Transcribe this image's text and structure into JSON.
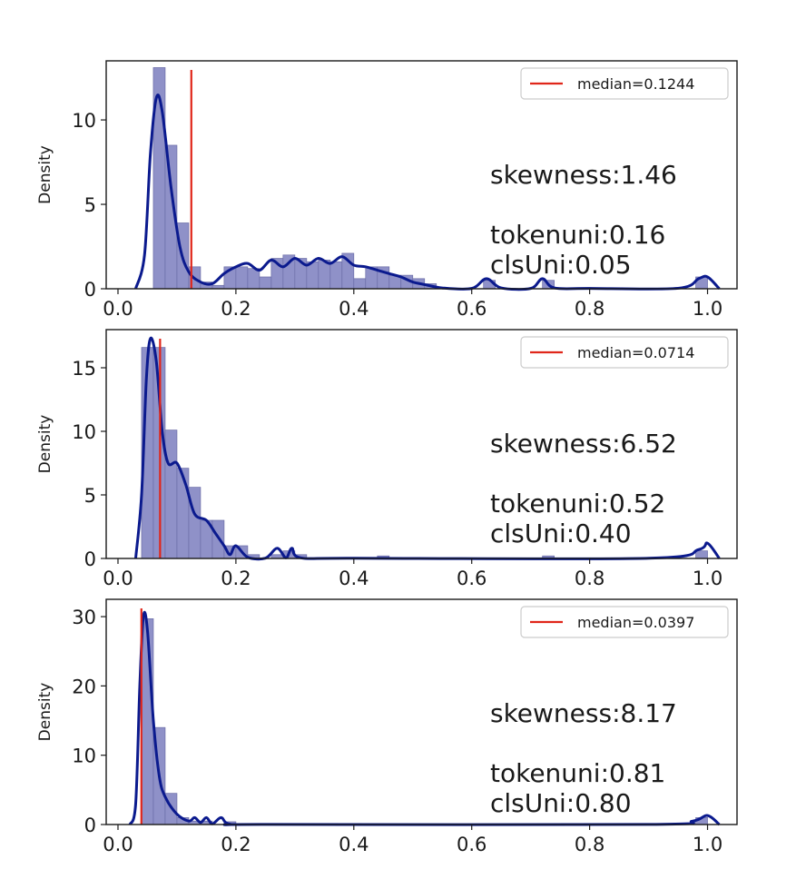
{
  "chart_data": [
    {
      "type": "bar",
      "ylabel": "Density",
      "xlim": [
        -0.02,
        1.05
      ],
      "ylim": [
        0,
        13.5
      ],
      "xticks": [
        "0.0",
        "0.2",
        "0.4",
        "0.6",
        "0.8",
        "1.0"
      ],
      "xtick_values": [
        0,
        0.2,
        0.4,
        0.6,
        0.8,
        1.0
      ],
      "yticks": [
        "0",
        "5",
        "10"
      ],
      "ytick_values": [
        0,
        5,
        10
      ],
      "bin_width": 0.02,
      "bins": [
        [
          0.06,
          13.1
        ],
        [
          0.08,
          8.5
        ],
        [
          0.1,
          3.9
        ],
        [
          0.12,
          1.3
        ],
        [
          0.14,
          0.4
        ],
        [
          0.16,
          0.2
        ],
        [
          0.18,
          1.3
        ],
        [
          0.2,
          1.3
        ],
        [
          0.22,
          1.2
        ],
        [
          0.24,
          0.7
        ],
        [
          0.26,
          1.8
        ],
        [
          0.28,
          2.0
        ],
        [
          0.3,
          1.8
        ],
        [
          0.32,
          1.6
        ],
        [
          0.34,
          1.7
        ],
        [
          0.36,
          1.6
        ],
        [
          0.38,
          2.1
        ],
        [
          0.4,
          0.6
        ],
        [
          0.42,
          1.3
        ],
        [
          0.44,
          1.3
        ],
        [
          0.46,
          0.8
        ],
        [
          0.48,
          0.8
        ],
        [
          0.5,
          0.6
        ],
        [
          0.52,
          0.3
        ],
        [
          0.62,
          0.5
        ],
        [
          0.72,
          0.5
        ],
        [
          0.98,
          0.7
        ]
      ],
      "kde": [
        [
          0.03,
          0
        ],
        [
          0.045,
          2
        ],
        [
          0.055,
          8
        ],
        [
          0.065,
          11.3
        ],
        [
          0.075,
          10.5
        ],
        [
          0.09,
          6
        ],
        [
          0.105,
          2.5
        ],
        [
          0.12,
          1.0
        ],
        [
          0.14,
          0.4
        ],
        [
          0.16,
          0.3
        ],
        [
          0.18,
          0.9
        ],
        [
          0.2,
          1.3
        ],
        [
          0.22,
          1.5
        ],
        [
          0.24,
          1.1
        ],
        [
          0.26,
          1.7
        ],
        [
          0.28,
          1.3
        ],
        [
          0.3,
          1.8
        ],
        [
          0.32,
          1.4
        ],
        [
          0.34,
          1.8
        ],
        [
          0.36,
          1.5
        ],
        [
          0.38,
          1.9
        ],
        [
          0.4,
          1.4
        ],
        [
          0.42,
          1.3
        ],
        [
          0.44,
          1.1
        ],
        [
          0.46,
          0.9
        ],
        [
          0.48,
          0.7
        ],
        [
          0.5,
          0.4
        ],
        [
          0.52,
          0.25
        ],
        [
          0.55,
          0.05
        ],
        [
          0.6,
          0.02
        ],
        [
          0.625,
          0.6
        ],
        [
          0.65,
          0.05
        ],
        [
          0.7,
          0.02
        ],
        [
          0.72,
          0.6
        ],
        [
          0.74,
          0.05
        ],
        [
          0.8,
          0.02
        ],
        [
          0.95,
          0.03
        ],
        [
          0.985,
          0.6
        ],
        [
          1.0,
          0.7
        ],
        [
          1.02,
          0
        ]
      ],
      "median": 0.1244,
      "legend": "median=0.1244",
      "legend_position": "top-right",
      "annotations": [
        "skewness:1.46",
        "tokenuni:0.16",
        "clsUni:0.05"
      ]
    },
    {
      "type": "bar",
      "ylabel": "Density",
      "xlim": [
        -0.02,
        1.05
      ],
      "ylim": [
        0,
        18
      ],
      "xticks": [
        "0.0",
        "0.2",
        "0.4",
        "0.6",
        "0.8",
        "1.0"
      ],
      "xtick_values": [
        0,
        0.2,
        0.4,
        0.6,
        0.8,
        1.0
      ],
      "yticks": [
        "0",
        "5",
        "10",
        "15"
      ],
      "ytick_values": [
        0,
        5,
        10,
        15
      ],
      "bin_width": 0.02,
      "bins": [
        [
          0.04,
          16.6
        ],
        [
          0.06,
          16.6
        ],
        [
          0.08,
          10.1
        ],
        [
          0.1,
          7.1
        ],
        [
          0.12,
          5.6
        ],
        [
          0.14,
          3.0
        ],
        [
          0.16,
          3.0
        ],
        [
          0.18,
          1.0
        ],
        [
          0.2,
          1.0
        ],
        [
          0.22,
          0.3
        ],
        [
          0.26,
          0.3
        ],
        [
          0.28,
          0.6
        ],
        [
          0.3,
          0.3
        ],
        [
          0.44,
          0.2
        ],
        [
          0.72,
          0.2
        ],
        [
          0.98,
          0.6
        ]
      ],
      "kde": [
        [
          0.03,
          0
        ],
        [
          0.04,
          5
        ],
        [
          0.048,
          14
        ],
        [
          0.055,
          17.3
        ],
        [
          0.065,
          15.5
        ],
        [
          0.075,
          10
        ],
        [
          0.085,
          7.5
        ],
        [
          0.1,
          7.5
        ],
        [
          0.115,
          5.8
        ],
        [
          0.13,
          3.5
        ],
        [
          0.15,
          3.0
        ],
        [
          0.165,
          2.0
        ],
        [
          0.18,
          1.0
        ],
        [
          0.19,
          0.3
        ],
        [
          0.2,
          1.0
        ],
        [
          0.22,
          0.1
        ],
        [
          0.25,
          0.02
        ],
        [
          0.27,
          0.8
        ],
        [
          0.285,
          0.05
        ],
        [
          0.295,
          0.8
        ],
        [
          0.31,
          0.05
        ],
        [
          0.4,
          0.02
        ],
        [
          0.9,
          0.02
        ],
        [
          0.985,
          0.7
        ],
        [
          1.0,
          1.2
        ],
        [
          1.02,
          0
        ]
      ],
      "median": 0.0714,
      "legend": "median=0.0714",
      "legend_position": "top-right",
      "annotations": [
        "skewness:6.52",
        "tokenuni:0.52",
        "clsUni:0.40"
      ]
    },
    {
      "type": "bar",
      "ylabel": "Density",
      "xlim": [
        -0.02,
        1.05
      ],
      "ylim": [
        0,
        32.5
      ],
      "xticks": [
        "0.0",
        "0.2",
        "0.4",
        "0.6",
        "0.8",
        "1.0"
      ],
      "xtick_values": [
        0,
        0.2,
        0.4,
        0.6,
        0.8,
        1.0
      ],
      "yticks": [
        "0",
        "10",
        "20",
        "30"
      ],
      "ytick_values": [
        0,
        10,
        20,
        30
      ],
      "bin_width": 0.02,
      "bins": [
        [
          0.04,
          29.7
        ],
        [
          0.06,
          14.0
        ],
        [
          0.08,
          4.5
        ],
        [
          0.1,
          1.0
        ],
        [
          0.12,
          0.5
        ],
        [
          0.14,
          0.5
        ],
        [
          0.18,
          0.4
        ],
        [
          0.98,
          1.0
        ]
      ],
      "kde": [
        [
          0.02,
          0
        ],
        [
          0.03,
          3
        ],
        [
          0.037,
          20
        ],
        [
          0.043,
          30
        ],
        [
          0.05,
          28
        ],
        [
          0.06,
          15
        ],
        [
          0.07,
          7
        ],
        [
          0.08,
          4
        ],
        [
          0.1,
          1.5
        ],
        [
          0.12,
          0.5
        ],
        [
          0.13,
          1.0
        ],
        [
          0.14,
          0.3
        ],
        [
          0.15,
          1.0
        ],
        [
          0.16,
          0.1
        ],
        [
          0.175,
          1.0
        ],
        [
          0.19,
          0.05
        ],
        [
          0.25,
          0.02
        ],
        [
          0.9,
          0.02
        ],
        [
          0.975,
          0.5
        ],
        [
          1.0,
          1.3
        ],
        [
          1.02,
          0
        ]
      ],
      "median": 0.0397,
      "legend": "median=0.0397",
      "legend_position": "top-right",
      "annotations": [
        "skewness:8.17",
        "tokenuni:0.81",
        "clsUni:0.80"
      ]
    }
  ],
  "colors": {
    "bar_fill": "#8f91c8",
    "bar_edge": "#6a6ca6",
    "kde_line": "#0b1a8e",
    "median_line": "#e0261a",
    "axes": "#1a1a1a"
  }
}
